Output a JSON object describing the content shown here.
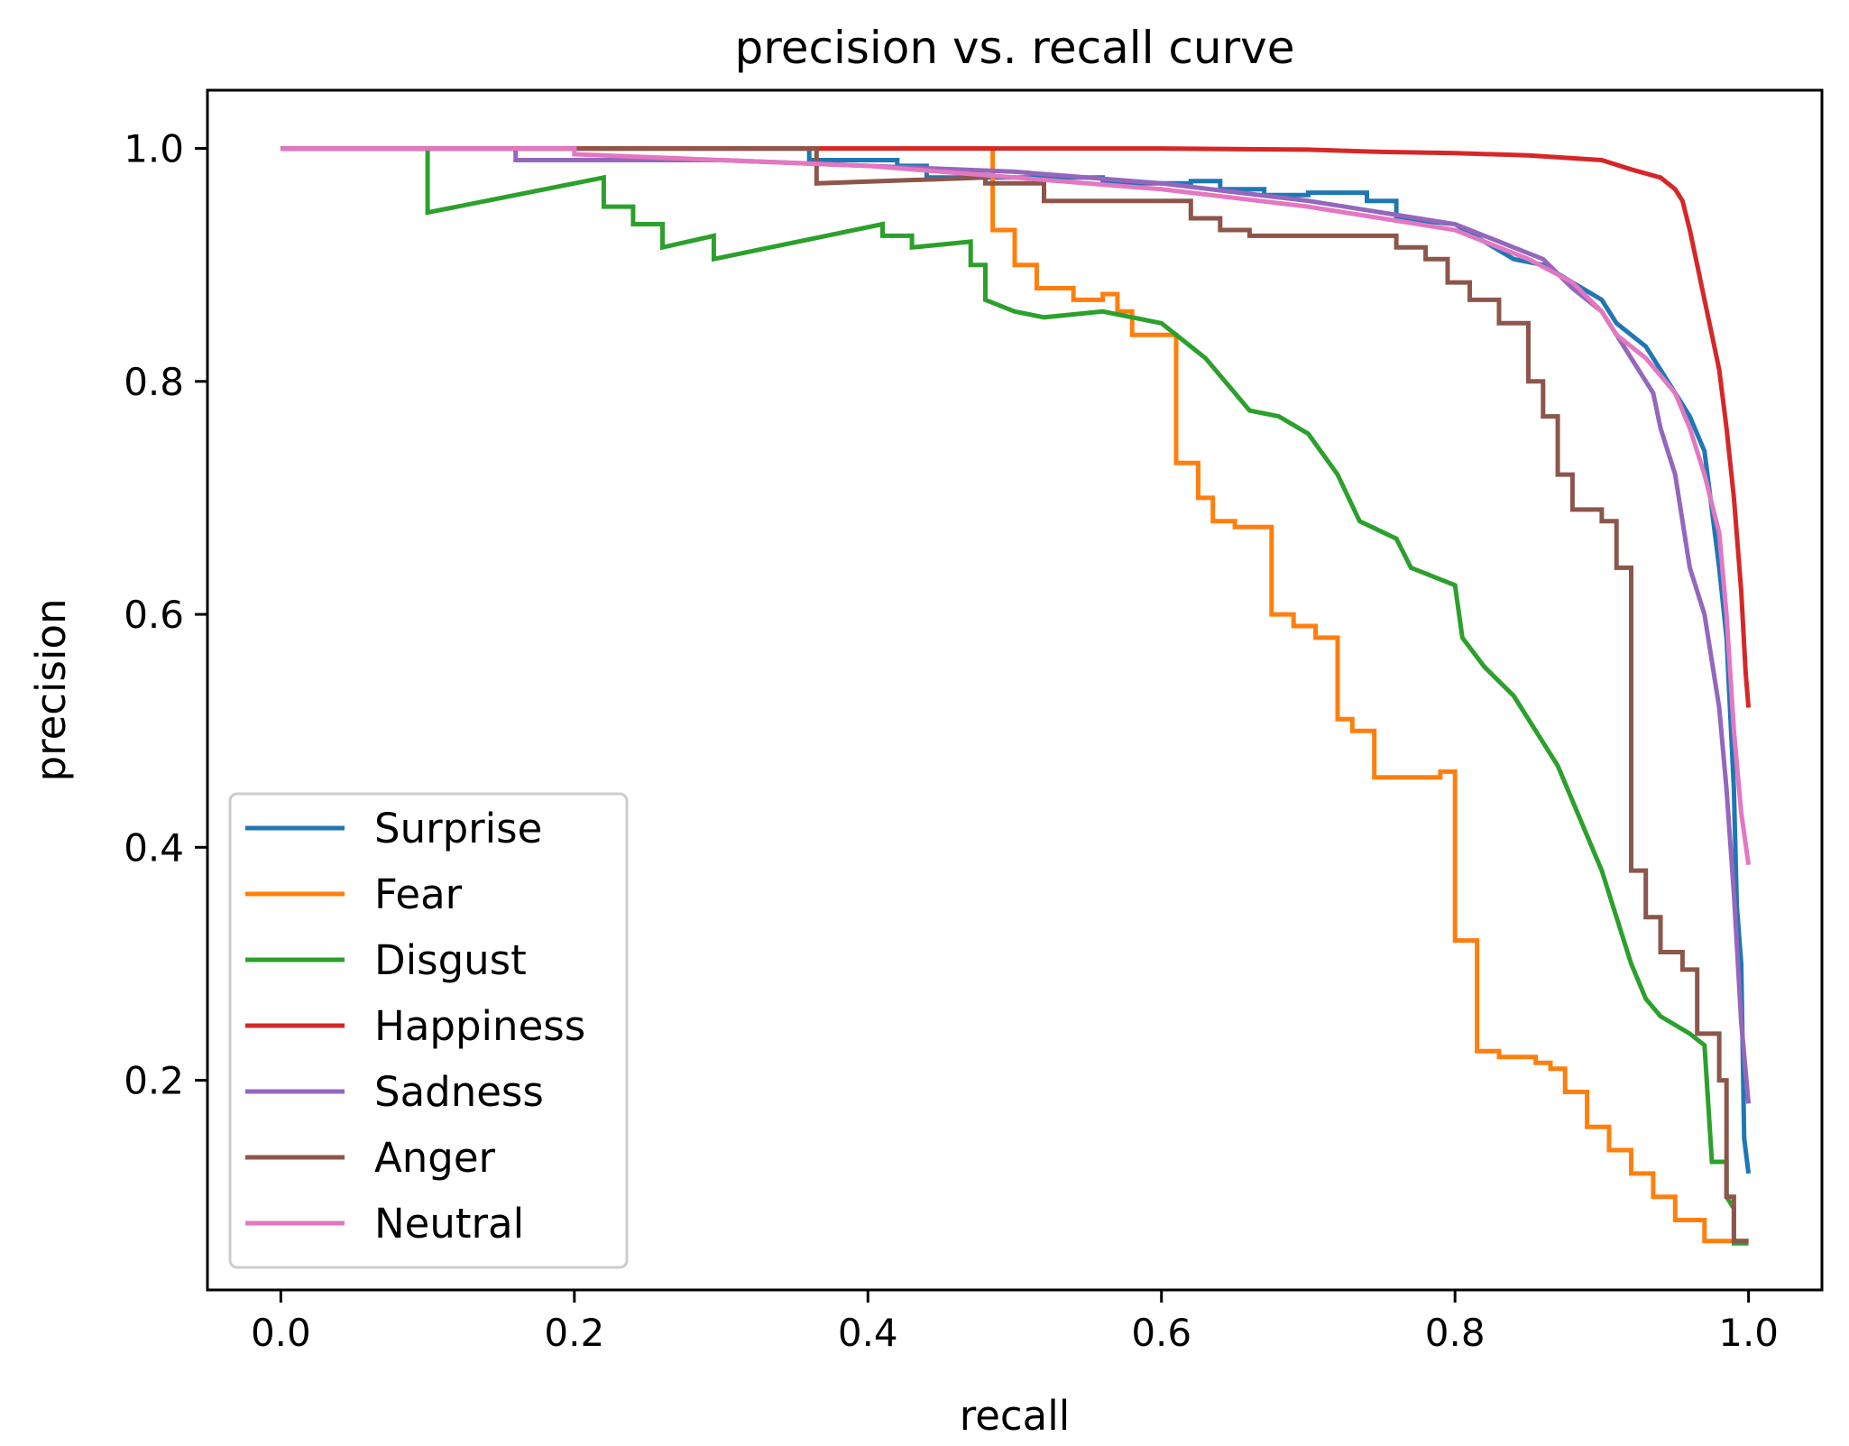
{
  "chart_data": {
    "type": "line",
    "title": "precision vs. recall curve",
    "xlabel": "recall",
    "ylabel": "precision",
    "xlim": [
      -0.05,
      1.05
    ],
    "ylim": [
      0.02,
      1.05
    ],
    "xticks": [
      0.0,
      0.2,
      0.4,
      0.6,
      0.8,
      1.0
    ],
    "xtick_labels": [
      "0.0",
      "0.2",
      "0.4",
      "0.6",
      "0.8",
      "1.0"
    ],
    "yticks": [
      0.2,
      0.4,
      0.6,
      0.8,
      1.0
    ],
    "ytick_labels": [
      "0.2",
      "0.4",
      "0.6",
      "0.8",
      "1.0"
    ],
    "grid": false,
    "legend_position": "lower-left",
    "series": [
      {
        "name": "Surprise",
        "color": "#1f77b4",
        "points": [
          [
            0.0,
            1.0
          ],
          [
            0.36,
            1.0
          ],
          [
            0.36,
            0.99
          ],
          [
            0.42,
            0.99
          ],
          [
            0.42,
            0.985
          ],
          [
            0.44,
            0.985
          ],
          [
            0.44,
            0.975
          ],
          [
            0.56,
            0.975
          ],
          [
            0.56,
            0.97
          ],
          [
            0.62,
            0.97
          ],
          [
            0.62,
            0.972
          ],
          [
            0.64,
            0.972
          ],
          [
            0.64,
            0.965
          ],
          [
            0.67,
            0.965
          ],
          [
            0.67,
            0.96
          ],
          [
            0.7,
            0.96
          ],
          [
            0.7,
            0.962
          ],
          [
            0.74,
            0.962
          ],
          [
            0.74,
            0.955
          ],
          [
            0.76,
            0.955
          ],
          [
            0.76,
            0.94
          ],
          [
            0.8,
            0.935
          ],
          [
            0.82,
            0.92
          ],
          [
            0.84,
            0.905
          ],
          [
            0.86,
            0.9
          ],
          [
            0.88,
            0.885
          ],
          [
            0.9,
            0.87
          ],
          [
            0.91,
            0.85
          ],
          [
            0.93,
            0.83
          ],
          [
            0.95,
            0.79
          ],
          [
            0.96,
            0.77
          ],
          [
            0.97,
            0.74
          ],
          [
            0.975,
            0.69
          ],
          [
            0.98,
            0.64
          ],
          [
            0.985,
            0.58
          ],
          [
            0.99,
            0.45
          ],
          [
            0.992,
            0.35
          ],
          [
            0.995,
            0.3
          ],
          [
            0.997,
            0.15
          ],
          [
            1.0,
            0.12
          ]
        ]
      },
      {
        "name": "Fear",
        "color": "#ff7f0e",
        "points": [
          [
            0.0,
            1.0
          ],
          [
            0.485,
            1.0
          ],
          [
            0.485,
            0.93
          ],
          [
            0.5,
            0.93
          ],
          [
            0.5,
            0.9
          ],
          [
            0.515,
            0.9
          ],
          [
            0.515,
            0.88
          ],
          [
            0.54,
            0.88
          ],
          [
            0.54,
            0.87
          ],
          [
            0.56,
            0.87
          ],
          [
            0.56,
            0.875
          ],
          [
            0.57,
            0.875
          ],
          [
            0.57,
            0.86
          ],
          [
            0.58,
            0.86
          ],
          [
            0.58,
            0.84
          ],
          [
            0.61,
            0.84
          ],
          [
            0.61,
            0.73
          ],
          [
            0.625,
            0.73
          ],
          [
            0.625,
            0.7
          ],
          [
            0.635,
            0.7
          ],
          [
            0.635,
            0.68
          ],
          [
            0.65,
            0.68
          ],
          [
            0.65,
            0.675
          ],
          [
            0.675,
            0.675
          ],
          [
            0.675,
            0.6
          ],
          [
            0.69,
            0.6
          ],
          [
            0.69,
            0.59
          ],
          [
            0.705,
            0.59
          ],
          [
            0.705,
            0.58
          ],
          [
            0.72,
            0.58
          ],
          [
            0.72,
            0.51
          ],
          [
            0.73,
            0.51
          ],
          [
            0.73,
            0.5
          ],
          [
            0.745,
            0.5
          ],
          [
            0.745,
            0.46
          ],
          [
            0.79,
            0.46
          ],
          [
            0.79,
            0.465
          ],
          [
            0.8,
            0.465
          ],
          [
            0.8,
            0.32
          ],
          [
            0.815,
            0.32
          ],
          [
            0.815,
            0.225
          ],
          [
            0.83,
            0.225
          ],
          [
            0.83,
            0.22
          ],
          [
            0.855,
            0.22
          ],
          [
            0.855,
            0.215
          ],
          [
            0.865,
            0.215
          ],
          [
            0.865,
            0.21
          ],
          [
            0.875,
            0.21
          ],
          [
            0.875,
            0.19
          ],
          [
            0.89,
            0.19
          ],
          [
            0.89,
            0.16
          ],
          [
            0.905,
            0.16
          ],
          [
            0.905,
            0.14
          ],
          [
            0.92,
            0.14
          ],
          [
            0.92,
            0.12
          ],
          [
            0.935,
            0.12
          ],
          [
            0.935,
            0.1
          ],
          [
            0.95,
            0.1
          ],
          [
            0.95,
            0.08
          ],
          [
            0.97,
            0.08
          ],
          [
            0.97,
            0.062
          ],
          [
            1.0,
            0.062
          ]
        ]
      },
      {
        "name": "Disgust",
        "color": "#2ca02c",
        "points": [
          [
            0.0,
            1.0
          ],
          [
            0.1,
            1.0
          ],
          [
            0.1,
            0.945
          ],
          [
            0.22,
            0.975
          ],
          [
            0.22,
            0.95
          ],
          [
            0.24,
            0.95
          ],
          [
            0.24,
            0.935
          ],
          [
            0.26,
            0.935
          ],
          [
            0.26,
            0.915
          ],
          [
            0.295,
            0.925
          ],
          [
            0.295,
            0.905
          ],
          [
            0.41,
            0.935
          ],
          [
            0.41,
            0.925
          ],
          [
            0.43,
            0.925
          ],
          [
            0.43,
            0.915
          ],
          [
            0.47,
            0.92
          ],
          [
            0.47,
            0.9
          ],
          [
            0.48,
            0.9
          ],
          [
            0.48,
            0.87
          ],
          [
            0.5,
            0.86
          ],
          [
            0.52,
            0.855
          ],
          [
            0.56,
            0.86
          ],
          [
            0.6,
            0.85
          ],
          [
            0.63,
            0.82
          ],
          [
            0.65,
            0.79
          ],
          [
            0.66,
            0.775
          ],
          [
            0.68,
            0.77
          ],
          [
            0.7,
            0.755
          ],
          [
            0.72,
            0.72
          ],
          [
            0.735,
            0.68
          ],
          [
            0.76,
            0.665
          ],
          [
            0.77,
            0.64
          ],
          [
            0.8,
            0.625
          ],
          [
            0.805,
            0.58
          ],
          [
            0.82,
            0.555
          ],
          [
            0.84,
            0.53
          ],
          [
            0.86,
            0.49
          ],
          [
            0.87,
            0.47
          ],
          [
            0.88,
            0.44
          ],
          [
            0.89,
            0.41
          ],
          [
            0.9,
            0.38
          ],
          [
            0.91,
            0.34
          ],
          [
            0.92,
            0.3
          ],
          [
            0.93,
            0.27
          ],
          [
            0.94,
            0.255
          ],
          [
            0.96,
            0.24
          ],
          [
            0.97,
            0.23
          ],
          [
            0.975,
            0.13
          ],
          [
            0.985,
            0.13
          ],
          [
            0.985,
            0.1
          ],
          [
            0.99,
            0.09
          ],
          [
            0.99,
            0.06
          ],
          [
            1.0,
            0.06
          ]
        ]
      },
      {
        "name": "Happiness",
        "color": "#d62728",
        "points": [
          [
            0.0,
            1.0
          ],
          [
            0.5,
            1.0
          ],
          [
            0.6,
            1.0
          ],
          [
            0.7,
            0.999
          ],
          [
            0.75,
            0.997
          ],
          [
            0.8,
            0.996
          ],
          [
            0.85,
            0.994
          ],
          [
            0.9,
            0.99
          ],
          [
            0.92,
            0.982
          ],
          [
            0.94,
            0.975
          ],
          [
            0.95,
            0.965
          ],
          [
            0.955,
            0.955
          ],
          [
            0.96,
            0.93
          ],
          [
            0.965,
            0.9
          ],
          [
            0.97,
            0.87
          ],
          [
            0.975,
            0.84
          ],
          [
            0.98,
            0.81
          ],
          [
            0.985,
            0.76
          ],
          [
            0.99,
            0.7
          ],
          [
            0.995,
            0.62
          ],
          [
            0.998,
            0.55
          ],
          [
            1.0,
            0.52
          ]
        ]
      },
      {
        "name": "Sadness",
        "color": "#9467bd",
        "points": [
          [
            0.0,
            1.0
          ],
          [
            0.16,
            1.0
          ],
          [
            0.16,
            0.99
          ],
          [
            0.3,
            0.99
          ],
          [
            0.4,
            0.985
          ],
          [
            0.5,
            0.98
          ],
          [
            0.6,
            0.97
          ],
          [
            0.7,
            0.955
          ],
          [
            0.75,
            0.945
          ],
          [
            0.8,
            0.935
          ],
          [
            0.84,
            0.915
          ],
          [
            0.86,
            0.905
          ],
          [
            0.88,
            0.88
          ],
          [
            0.9,
            0.86
          ],
          [
            0.92,
            0.82
          ],
          [
            0.935,
            0.79
          ],
          [
            0.94,
            0.76
          ],
          [
            0.95,
            0.72
          ],
          [
            0.955,
            0.68
          ],
          [
            0.96,
            0.64
          ],
          [
            0.97,
            0.6
          ],
          [
            0.98,
            0.52
          ],
          [
            0.985,
            0.45
          ],
          [
            0.99,
            0.36
          ],
          [
            0.995,
            0.25
          ],
          [
            1.0,
            0.18
          ]
        ]
      },
      {
        "name": "Anger",
        "color": "#8c564b",
        "points": [
          [
            0.0,
            1.0
          ],
          [
            0.365,
            1.0
          ],
          [
            0.365,
            0.97
          ],
          [
            0.48,
            0.975
          ],
          [
            0.48,
            0.97
          ],
          [
            0.52,
            0.97
          ],
          [
            0.52,
            0.955
          ],
          [
            0.62,
            0.955
          ],
          [
            0.62,
            0.94
          ],
          [
            0.64,
            0.94
          ],
          [
            0.64,
            0.93
          ],
          [
            0.66,
            0.93
          ],
          [
            0.66,
            0.925
          ],
          [
            0.7,
            0.925
          ],
          [
            0.76,
            0.925
          ],
          [
            0.76,
            0.915
          ],
          [
            0.78,
            0.915
          ],
          [
            0.78,
            0.905
          ],
          [
            0.795,
            0.905
          ],
          [
            0.795,
            0.885
          ],
          [
            0.81,
            0.885
          ],
          [
            0.81,
            0.87
          ],
          [
            0.83,
            0.87
          ],
          [
            0.83,
            0.85
          ],
          [
            0.85,
            0.85
          ],
          [
            0.85,
            0.8
          ],
          [
            0.86,
            0.8
          ],
          [
            0.86,
            0.77
          ],
          [
            0.87,
            0.77
          ],
          [
            0.87,
            0.72
          ],
          [
            0.88,
            0.72
          ],
          [
            0.88,
            0.69
          ],
          [
            0.9,
            0.69
          ],
          [
            0.9,
            0.68
          ],
          [
            0.91,
            0.68
          ],
          [
            0.91,
            0.64
          ],
          [
            0.92,
            0.64
          ],
          [
            0.92,
            0.38
          ],
          [
            0.93,
            0.38
          ],
          [
            0.93,
            0.34
          ],
          [
            0.94,
            0.34
          ],
          [
            0.94,
            0.31
          ],
          [
            0.955,
            0.31
          ],
          [
            0.955,
            0.295
          ],
          [
            0.965,
            0.295
          ],
          [
            0.965,
            0.24
          ],
          [
            0.98,
            0.24
          ],
          [
            0.98,
            0.2
          ],
          [
            0.985,
            0.2
          ],
          [
            0.985,
            0.1
          ],
          [
            0.99,
            0.1
          ],
          [
            0.99,
            0.062
          ],
          [
            1.0,
            0.062
          ]
        ]
      },
      {
        "name": "Neutral",
        "color": "#e377c2",
        "points": [
          [
            0.0,
            1.0
          ],
          [
            0.2,
            1.0
          ],
          [
            0.2,
            0.995
          ],
          [
            0.3,
            0.99
          ],
          [
            0.4,
            0.985
          ],
          [
            0.5,
            0.975
          ],
          [
            0.6,
            0.965
          ],
          [
            0.7,
            0.95
          ],
          [
            0.75,
            0.94
          ],
          [
            0.8,
            0.93
          ],
          [
            0.85,
            0.905
          ],
          [
            0.88,
            0.885
          ],
          [
            0.9,
            0.86
          ],
          [
            0.91,
            0.84
          ],
          [
            0.93,
            0.82
          ],
          [
            0.95,
            0.79
          ],
          [
            0.96,
            0.76
          ],
          [
            0.97,
            0.72
          ],
          [
            0.98,
            0.67
          ],
          [
            0.985,
            0.6
          ],
          [
            0.99,
            0.5
          ],
          [
            0.995,
            0.43
          ],
          [
            1.0,
            0.385
          ]
        ]
      }
    ]
  }
}
